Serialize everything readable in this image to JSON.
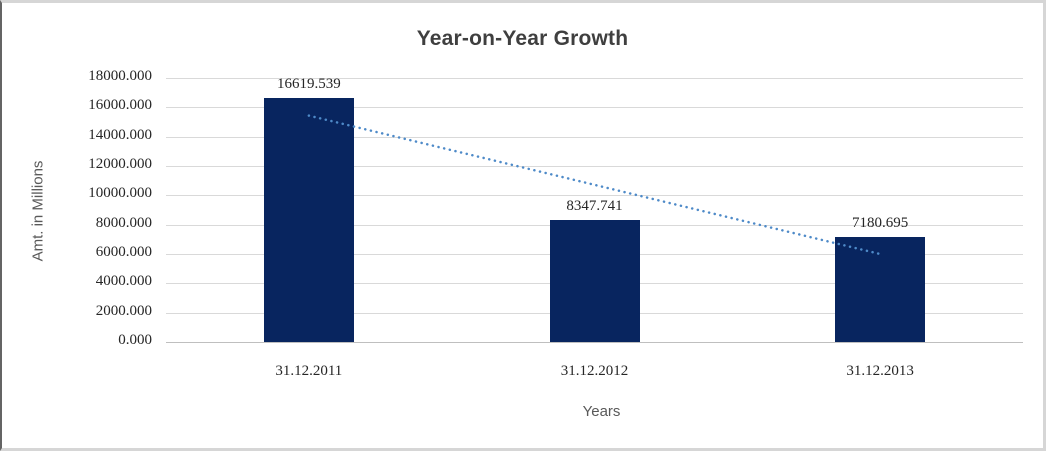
{
  "chart_data": {
    "type": "bar",
    "title": "Year-on-Year Growth",
    "xlabel": "Years",
    "ylabel": "Amt. in Millions",
    "categories": [
      "31.12.2011",
      "31.12.2012",
      "31.12.2013"
    ],
    "values": [
      16619.539,
      8347.741,
      7180.695
    ],
    "data_labels": [
      "16619.539",
      "8347.741",
      "7180.695"
    ],
    "ylim": [
      0,
      18000
    ],
    "ytick_interval": 2000,
    "ytick_labels": [
      "18000.000",
      "16000.000",
      "14000.000",
      "12000.000",
      "10000.000",
      "8000.000",
      "6000.000",
      "4000.000",
      "2000.000",
      "0.000"
    ],
    "grid": true,
    "legend": "none",
    "trendline": {
      "type": "linear",
      "style": "dotted"
    },
    "colors": {
      "bar": "#08255f",
      "trendline": "#4e8ac8",
      "gridline": "#d9d9d9",
      "axis_line": "#bfbfbf",
      "title_text": "#3f3f3f",
      "axis_title_text": "#595959",
      "tick_text": "#262626"
    }
  }
}
